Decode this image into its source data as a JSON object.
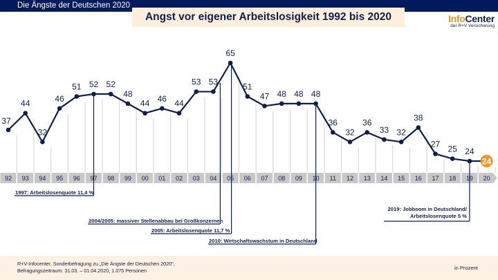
{
  "header": {
    "series_title": "Die Ängste der Deutschen 2020",
    "logo_info": "Info",
    "logo_center": "Center",
    "logo_sub": "der R+V Versicherung"
  },
  "footer": {
    "source_line1": "R+V-Infocenter, Sonderbefragung zu „Die Ängste der Deutschen 2020\",",
    "source_line2": "Befragungszeitraum: 31.03. – 01.04.2020, 1.075 Personen",
    "unit": "in Prozent"
  },
  "colors": {
    "line": "#0e1f4d",
    "highlight": "#f39322",
    "axis_band": "#c8c8c8",
    "grid": "#d3d3d3",
    "title_bg": "#fdefdc",
    "top_bar": "#001a5b"
  },
  "chart_data": {
    "type": "line",
    "title": "Angst vor eigener Arbeitslosigkeit 1992 bis 2020",
    "xlabel": "",
    "ylabel": "in Prozent",
    "grid": true,
    "categories": [
      "92",
      "93",
      "94",
      "95",
      "96",
      "97",
      "98",
      "99",
      "00",
      "01",
      "02",
      "03",
      "04",
      "05",
      "06",
      "07",
      "08",
      "09",
      "10",
      "11",
      "12",
      "13",
      "14",
      "15",
      "16",
      "17",
      "18",
      "19",
      "20"
    ],
    "values": [
      37,
      44,
      32,
      46,
      51,
      52,
      52,
      48,
      44,
      46,
      44,
      53,
      53,
      65,
      51,
      47,
      48,
      48,
      48,
      36,
      32,
      36,
      33,
      32,
      38,
      27,
      25,
      24,
      24
    ],
    "highlight_index": 28,
    "annotations": [
      {
        "year": "97",
        "text": "1997: Arbeitslosenquote 11,4 %"
      },
      {
        "year": "04",
        "text": "2004/2005: massiver Stellenabbau bei Großkonzernen"
      },
      {
        "year": "05",
        "text": "2005: Arbeitslosenquote 11,7 %"
      },
      {
        "year": "10",
        "text": "2010: Wirtschaftswachstum in Deutschland"
      },
      {
        "year": "19",
        "text": "2019: Jobboom in Deutschland/",
        "text2": "Arbeitslosenquote 5 %"
      }
    ]
  }
}
